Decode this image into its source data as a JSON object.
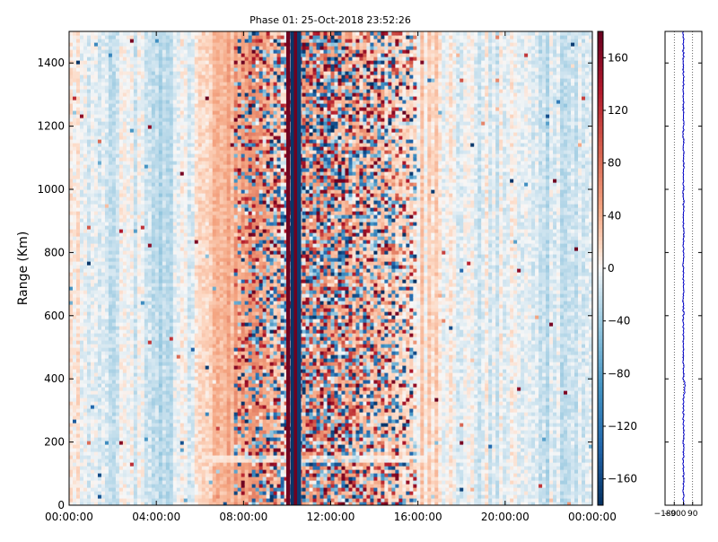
{
  "chart_data": [
    {
      "type": "heatmap",
      "title": "Phase 01: 25-Oct-2018 23:52:26",
      "xlabel": "",
      "ylabel": "Range (Km)",
      "x_ticks": [
        "00:00:00",
        "04:00:00",
        "08:00:00",
        "12:00:00",
        "16:00:00",
        "20:00:00",
        "00:00:00"
      ],
      "x_range_hours": [
        0,
        24
      ],
      "y_ticks": [
        0,
        200,
        400,
        600,
        800,
        1000,
        1200,
        1400
      ],
      "ylim": [
        0,
        1500
      ],
      "colormap": "RdBu_r",
      "clim": [
        -180,
        180
      ],
      "colorbar_ticks": [
        160,
        120,
        80,
        40,
        0,
        -40,
        -80,
        -120,
        -160
      ],
      "phase_profile_by_hour": [
        {
          "hour": 0,
          "value": 5
        },
        {
          "hour": 2,
          "value": -10
        },
        {
          "hour": 3.5,
          "value": -5
        },
        {
          "hour": 4.5,
          "value": -30
        },
        {
          "hour": 6,
          "value": 15
        },
        {
          "hour": 7.5,
          "value": 40
        },
        {
          "hour": 9,
          "value": 60
        },
        {
          "hour": 10,
          "value": 0
        },
        {
          "hour": 11,
          "value": 60
        },
        {
          "hour": 13,
          "value": 30
        },
        {
          "hour": 15,
          "value": 20
        },
        {
          "hour": 17,
          "value": 10
        },
        {
          "hour": 18,
          "value": -10
        },
        {
          "hour": 20,
          "value": -5
        },
        {
          "hour": 22,
          "value": -15
        },
        {
          "hour": 24,
          "value": -10
        }
      ],
      "noisy_interval_hours": [
        7.5,
        16
      ],
      "dark_stripes": [
        {
          "hour": 10.05,
          "value": 175
        },
        {
          "hour": 10.25,
          "value": -175
        },
        {
          "hour": 10.4,
          "value": 175
        },
        {
          "hour": 10.55,
          "value": -170
        }
      ],
      "horizontal_band_km": 150
    },
    {
      "type": "line",
      "title": "",
      "x_ticks": [
        "-180",
        "-90",
        "0",
        "90"
      ],
      "xlim": [
        -180,
        180
      ],
      "ylim": [
        0,
        1500
      ],
      "series_color": "#0000cc",
      "mean_value": 0,
      "feature": {
        "range_km": 370,
        "value": 15
      }
    }
  ]
}
